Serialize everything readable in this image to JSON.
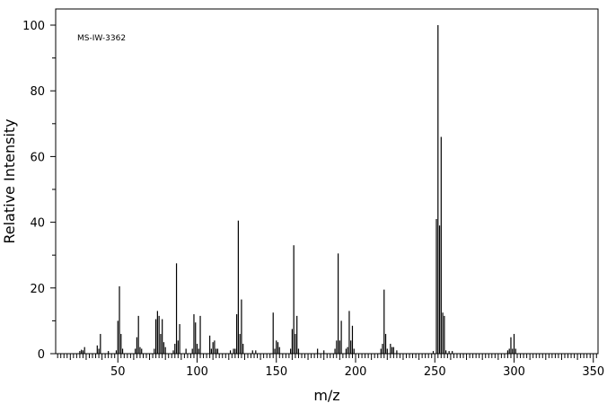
{
  "chart_data": {
    "type": "bar",
    "title": "",
    "annotation": "MS-IW-3362",
    "xlabel": "m/z",
    "ylabel": "Relative Intensity",
    "xlim": [
      11,
      353
    ],
    "ylim": [
      0,
      105
    ],
    "xticks": [
      50,
      100,
      150,
      200,
      250,
      300,
      350
    ],
    "yticks": [
      0,
      20,
      40,
      60,
      80,
      100
    ],
    "grid": false,
    "peaks": [
      [
        26,
        0.8
      ],
      [
        27,
        1.2
      ],
      [
        28,
        1
      ],
      [
        29,
        2
      ],
      [
        37,
        2.5
      ],
      [
        38,
        1.5
      ],
      [
        39,
        6
      ],
      [
        44,
        0.8
      ],
      [
        49,
        1
      ],
      [
        50,
        10
      ],
      [
        51,
        20.5
      ],
      [
        52,
        6
      ],
      [
        53,
        1.5
      ],
      [
        61,
        1.5
      ],
      [
        62,
        5
      ],
      [
        63,
        11.5
      ],
      [
        64,
        2
      ],
      [
        65,
        1.5
      ],
      [
        73,
        1.5
      ],
      [
        74,
        10.5
      ],
      [
        75,
        13
      ],
      [
        76,
        11.5
      ],
      [
        77,
        6
      ],
      [
        78,
        10.5
      ],
      [
        79,
        3.5
      ],
      [
        80,
        2
      ],
      [
        85,
        1
      ],
      [
        86,
        3
      ],
      [
        87,
        27.5
      ],
      [
        88,
        4
      ],
      [
        89,
        9
      ],
      [
        93,
        1.5
      ],
      [
        97,
        1.5
      ],
      [
        98,
        12
      ],
      [
        99,
        9.5
      ],
      [
        100,
        3
      ],
      [
        101,
        1.5
      ],
      [
        102,
        11.5
      ],
      [
        108,
        5.5
      ],
      [
        109,
        1.5
      ],
      [
        110,
        3.5
      ],
      [
        111,
        4
      ],
      [
        112,
        1.5
      ],
      [
        113,
        1.5
      ],
      [
        121,
        1
      ],
      [
        123,
        1.5
      ],
      [
        124,
        1.5
      ],
      [
        125,
        12
      ],
      [
        126,
        40.5
      ],
      [
        127,
        6
      ],
      [
        128,
        16.5
      ],
      [
        129,
        3
      ],
      [
        135,
        1
      ],
      [
        137,
        1
      ],
      [
        148,
        12.5
      ],
      [
        149,
        1.5
      ],
      [
        150,
        4
      ],
      [
        151,
        3.5
      ],
      [
        152,
        2
      ],
      [
        159,
        1.5
      ],
      [
        160,
        7.5
      ],
      [
        161,
        33
      ],
      [
        162,
        6
      ],
      [
        163,
        11.5
      ],
      [
        164,
        1.5
      ],
      [
        176,
        1.5
      ],
      [
        180,
        1
      ],
      [
        187,
        1.5
      ],
      [
        188,
        4
      ],
      [
        189,
        30.5
      ],
      [
        190,
        4
      ],
      [
        191,
        10
      ],
      [
        194,
        1.5
      ],
      [
        195,
        2
      ],
      [
        196,
        13
      ],
      [
        197,
        4
      ],
      [
        198,
        8.5
      ],
      [
        199,
        1.5
      ],
      [
        216,
        1.5
      ],
      [
        217,
        3
      ],
      [
        218,
        19.5
      ],
      [
        219,
        6
      ],
      [
        220,
        1.5
      ],
      [
        222,
        3
      ],
      [
        223,
        2
      ],
      [
        224,
        2
      ],
      [
        226,
        1
      ],
      [
        249,
        0.8
      ],
      [
        251,
        41
      ],
      [
        252,
        100
      ],
      [
        253,
        39
      ],
      [
        254,
        66
      ],
      [
        255,
        12.5
      ],
      [
        256,
        11.5
      ],
      [
        257,
        1
      ],
      [
        259,
        0.8
      ],
      [
        261,
        0.8
      ],
      [
        296,
        1
      ],
      [
        297,
        1.5
      ],
      [
        298,
        5
      ],
      [
        299,
        1.5
      ],
      [
        300,
        6
      ],
      [
        301,
        1.5
      ]
    ]
  }
}
